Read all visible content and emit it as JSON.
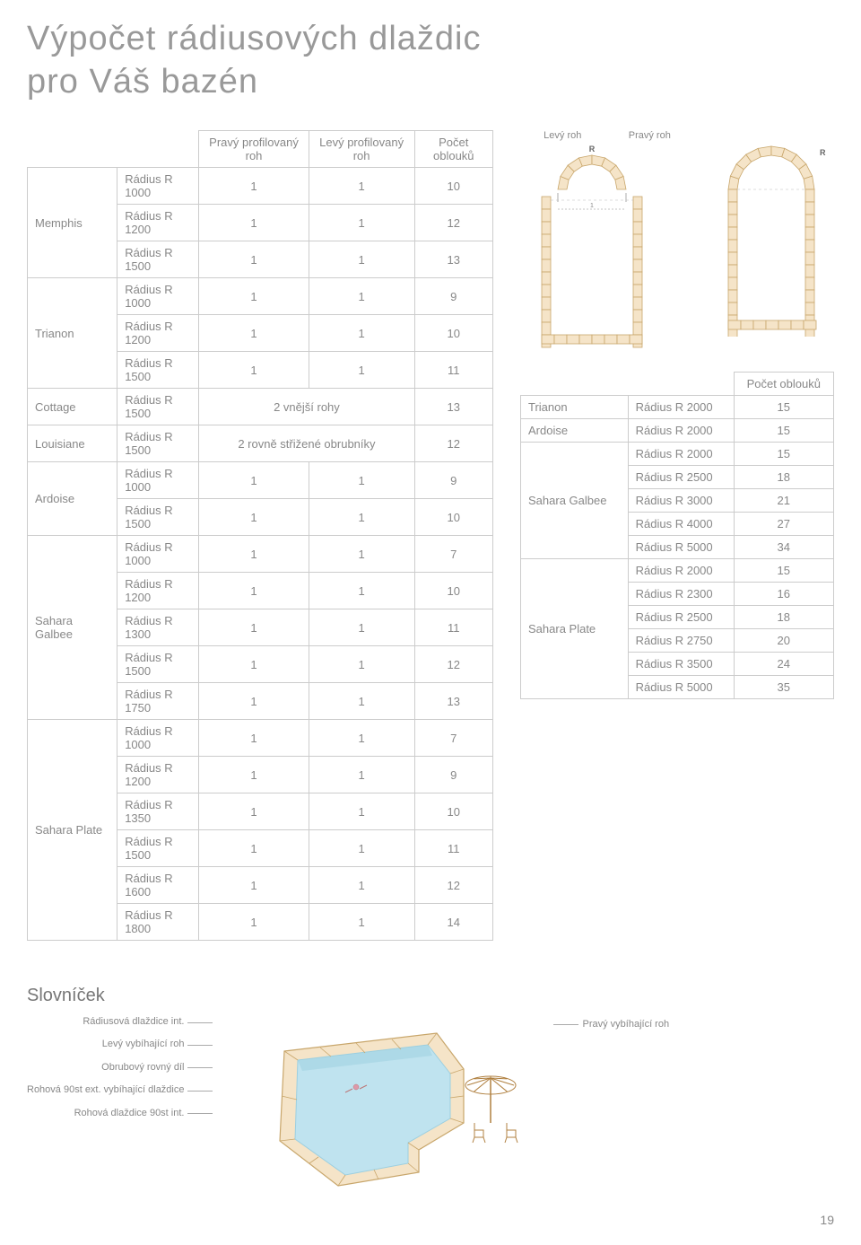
{
  "title_line1": "Výpočet rádiusových dlaždic",
  "title_line2": "pro Váš bazén",
  "left_table": {
    "headers": {
      "right_profile": "Pravý profilovaný roh",
      "left_profile": "Levý profilovaný roh",
      "arc_count": "Počet oblouků"
    },
    "groups": [
      {
        "name": "Memphis",
        "rows": [
          {
            "label": "Rádius R 1000",
            "r": "1",
            "l": "1",
            "n": "10"
          },
          {
            "label": "Rádius R 1200",
            "r": "1",
            "l": "1",
            "n": "12"
          },
          {
            "label": "Rádius R 1500",
            "r": "1",
            "l": "1",
            "n": "13"
          }
        ]
      },
      {
        "name": "Trianon",
        "rows": [
          {
            "label": "Rádius R 1000",
            "r": "1",
            "l": "1",
            "n": "9"
          },
          {
            "label": "Rádius R 1200",
            "r": "1",
            "l": "1",
            "n": "10"
          },
          {
            "label": "Rádius R 1500",
            "r": "1",
            "l": "1",
            "n": "11"
          }
        ]
      },
      {
        "name": "Cottage",
        "rows": [
          {
            "label": "Rádius R 1500",
            "span2": "2 vnější rohy",
            "n": "13"
          }
        ]
      },
      {
        "name": "Louisiane",
        "rows": [
          {
            "label": "Rádius R 1500",
            "span2": "2 rovně střižené obrubníky",
            "n": "12"
          }
        ]
      },
      {
        "name": "Ardoise",
        "rows": [
          {
            "label": "Rádius R 1000",
            "r": "1",
            "l": "1",
            "n": "9"
          },
          {
            "label": "Rádius R 1500",
            "r": "1",
            "l": "1",
            "n": "10"
          }
        ]
      },
      {
        "name": "Sahara Galbee",
        "rows": [
          {
            "label": "Rádius R 1000",
            "r": "1",
            "l": "1",
            "n": "7"
          },
          {
            "label": "Rádius R 1200",
            "r": "1",
            "l": "1",
            "n": "10"
          },
          {
            "label": "Rádius R 1300",
            "r": "1",
            "l": "1",
            "n": "11"
          },
          {
            "label": "Rádius R 1500",
            "r": "1",
            "l": "1",
            "n": "12"
          },
          {
            "label": "Rádius R 1750",
            "r": "1",
            "l": "1",
            "n": "13"
          }
        ]
      },
      {
        "name": "Sahara Plate",
        "rows": [
          {
            "label": "Rádius R 1000",
            "r": "1",
            "l": "1",
            "n": "7"
          },
          {
            "label": "Rádius R 1200",
            "r": "1",
            "l": "1",
            "n": "9"
          },
          {
            "label": "Rádius R 1350",
            "r": "1",
            "l": "1",
            "n": "10"
          },
          {
            "label": "Rádius R 1500",
            "r": "1",
            "l": "1",
            "n": "11"
          },
          {
            "label": "Rádius R 1600",
            "r": "1",
            "l": "1",
            "n": "12"
          },
          {
            "label": "Rádius R 1800",
            "r": "1",
            "l": "1",
            "n": "14"
          }
        ]
      }
    ]
  },
  "diagram": {
    "left_corner": "Levý roh",
    "right_corner": "Pravý roh",
    "R": "R",
    "colors": {
      "tile_fill": "#f5e4c8",
      "tile_stroke": "#c8a66b",
      "pool_fill": "#ffffff",
      "measure_line": "#888888"
    }
  },
  "right_table": {
    "header": "Počet oblouků",
    "groups": [
      {
        "name": "Trianon",
        "rows": [
          {
            "label": "Rádius R 2000",
            "n": "15"
          }
        ]
      },
      {
        "name": "Ardoise",
        "rows": [
          {
            "label": "Rádius R 2000",
            "n": "15"
          }
        ]
      },
      {
        "name": "Sahara Galbee",
        "rows": [
          {
            "label": "Rádius R 2000",
            "n": "15"
          },
          {
            "label": "Rádius R 2500",
            "n": "18"
          },
          {
            "label": "Rádius R 3000",
            "n": "21"
          },
          {
            "label": "Rádius R 4000",
            "n": "27"
          },
          {
            "label": "Rádius R 5000",
            "n": "34"
          }
        ]
      },
      {
        "name": "Sahara Plate",
        "rows": [
          {
            "label": "Rádius R 2000",
            "n": "15"
          },
          {
            "label": "Rádius R 2300",
            "n": "16"
          },
          {
            "label": "Rádius R 2500",
            "n": "18"
          },
          {
            "label": "Rádius R 2750",
            "n": "20"
          },
          {
            "label": "Rádius R 3500",
            "n": "24"
          },
          {
            "label": "Rádius R 5000",
            "n": "35"
          }
        ]
      }
    ]
  },
  "glossary": {
    "heading": "Slovníček",
    "labels_left": [
      "Rádiusová dlaždice int.",
      "Levý vybíhající roh",
      "Obrubový rovný díl",
      "Rohová 90st ext. vybíhající dlaždice",
      "Rohová dlaždice 90st int."
    ],
    "label_right": "Pravý vybíhající roh",
    "pool_colors": {
      "water": "#bfe3ef",
      "water_shadow": "#9ccfe0",
      "tile_fill": "#f5e4c8",
      "tile_stroke": "#c8a66b",
      "umbrella_stroke": "#b08040"
    }
  },
  "page_number": "19"
}
